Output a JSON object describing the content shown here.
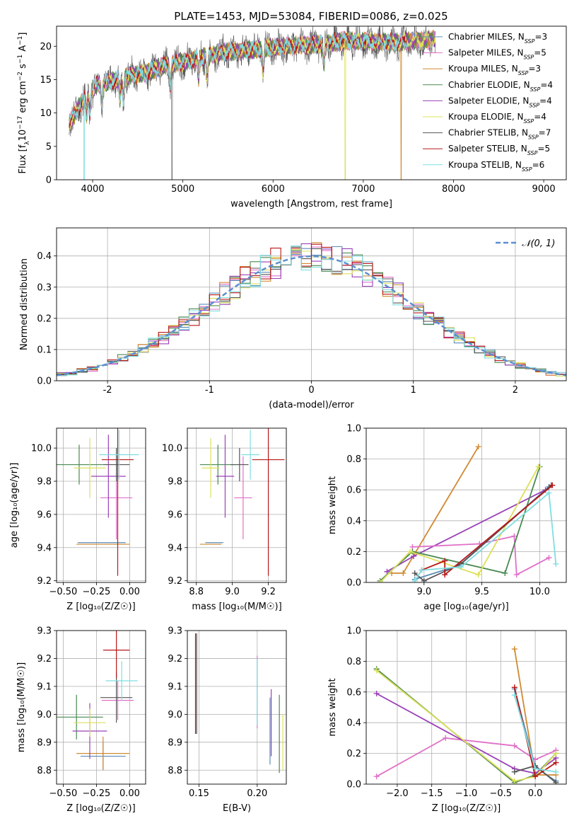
{
  "figure": {
    "title": "PLATE=1453, MJD=53084, FIBERID=0086, z=0.025"
  },
  "colors": {
    "Chabrier MILES": "#5b8db8",
    "Salpeter MILES": "#e070c8",
    "Kroupa MILES": "#d08a30",
    "Chabrier ELODIE": "#4a8a50",
    "Salpeter ELODIE": "#9a40b8",
    "Kroupa ELODIE": "#dde05a",
    "Chabrier STELIB": "#555555",
    "Salpeter STELIB": "#b81818",
    "Kroupa STELIB": "#80dde0"
  },
  "chart_data": [
    {
      "id": "spectrum",
      "type": "line",
      "title": "PLATE=1453, MJD=53084, FIBERID=0086, z=0.025",
      "xlabel": "wavelength [Angstrom, rest frame]",
      "ylabel_parts": [
        "Flux [f",
        "λ",
        "10",
        "−17",
        " erg cm",
        "−2",
        " s",
        "−1",
        " A",
        "−1",
        "]"
      ],
      "xlim": [
        3600,
        9250
      ],
      "ylim": [
        0,
        23
      ],
      "xticks": [
        4000,
        5000,
        6000,
        7000,
        8000,
        9000
      ],
      "yticks": [
        0,
        5,
        10,
        15,
        20
      ],
      "legend_position": "upper-right",
      "grid": false,
      "series": [
        {
          "name": "Chabrier MILES",
          "nssp": "3"
        },
        {
          "name": "Salpeter MILES",
          "nssp": "5"
        },
        {
          "name": "Kroupa MILES",
          "nssp": "3"
        },
        {
          "name": "Chabrier ELODIE",
          "nssp": "4"
        },
        {
          "name": "Salpeter ELODIE",
          "nssp": "4"
        },
        {
          "name": "Kroupa ELODIE",
          "nssp": "4"
        },
        {
          "name": "Chabrier STELIB",
          "nssp": "7"
        },
        {
          "name": "Salpeter STELIB",
          "nssp": "5"
        },
        {
          "name": "Kroupa STELIB",
          "nssp": "6"
        }
      ],
      "continuum": {
        "x": [
          3750,
          3850,
          3950,
          4050,
          4200,
          4400,
          4600,
          4800,
          5000,
          5200,
          5400,
          5600,
          5800,
          6000,
          6200,
          6400,
          6600,
          6800,
          7000,
          7200,
          7400,
          7600,
          7800
        ],
        "y": [
          8.5,
          11,
          13,
          14.2,
          14.8,
          15.6,
          16,
          17.2,
          17.6,
          18.3,
          19,
          19.2,
          19.5,
          19.8,
          20.1,
          20.2,
          20.4,
          20.8,
          20.7,
          20.6,
          20.6,
          20.9,
          21
        ]
      },
      "absorption_lines": [
        3934,
        3969,
        4102,
        4304,
        4340,
        4861,
        5175,
        5270,
        5890,
        6563,
        8500,
        8542,
        8662
      ],
      "dropouts": [
        {
          "x": 3905,
          "series": "Kroupa STELIB"
        },
        {
          "x": 4880,
          "series": "Chabrier STELIB"
        },
        {
          "x": 6800,
          "series": "Kroupa ELODIE"
        },
        {
          "x": 7420,
          "series": "Kroupa MILES"
        }
      ]
    },
    {
      "id": "residuals",
      "type": "step",
      "xlabel": "(data-model)/error",
      "ylabel": "Normed distribution",
      "xlim": [
        -2.5,
        2.5
      ],
      "ylim": [
        0,
        0.49
      ],
      "xticks": [
        -2,
        -1,
        0,
        1,
        2
      ],
      "yticks": [
        0.0,
        0.1,
        0.2,
        0.3,
        0.4
      ],
      "legend_position": "upper-right",
      "legend_label": "𝒩(0, 1)",
      "grid": true,
      "bin_width": 0.1,
      "gaussian": {
        "mean": 0,
        "sigma": 1
      }
    },
    {
      "id": "age-vs-Z",
      "type": "errorbar",
      "xlabel": "Z [log₁₀(Z/Z☉)]",
      "ylabel": "age  [log₁₀(age/yr)]",
      "xlim": [
        -0.55,
        0.12
      ],
      "ylim": [
        9.19,
        10.12
      ],
      "xticks": [
        -0.5,
        -0.25,
        0.0
      ],
      "xticklabels": [
        "−0.50",
        "−0.25",
        "0.00"
      ],
      "yticks": [
        9.2,
        9.4,
        9.6,
        9.8,
        10.0
      ],
      "yticklabels": [
        "9.2",
        "9.4",
        "9.6",
        "9.8",
        "10.0"
      ],
      "grid": true,
      "points": [
        {
          "series": "Chabrier MILES",
          "x": -0.21,
          "xerr": 0.18,
          "y": 9.43,
          "yerr": 0.0
        },
        {
          "series": "Salpeter MILES",
          "x": -0.1,
          "xerr": 0.12,
          "y": 9.7,
          "yerr": 0.25
        },
        {
          "series": "Kroupa MILES",
          "x": -0.2,
          "xerr": 0.2,
          "y": 9.42,
          "yerr": 0.0
        },
        {
          "series": "Chabrier ELODIE",
          "x": -0.38,
          "xerr": 0.18,
          "y": 9.9,
          "yerr": 0.12
        },
        {
          "series": "Salpeter ELODIE",
          "x": -0.16,
          "xerr": 0.13,
          "y": 9.83,
          "yerr": 0.25
        },
        {
          "series": "Kroupa ELODIE",
          "x": -0.3,
          "xerr": 0.12,
          "y": 9.88,
          "yerr": 0.18
        },
        {
          "series": "Chabrier STELIB",
          "x": -0.1,
          "xerr": 0.1,
          "y": 9.9,
          "yerr": 0.1
        },
        {
          "series": "Salpeter STELIB",
          "x": -0.09,
          "xerr": 0.12,
          "y": 9.93,
          "yerr": 0.7
        },
        {
          "series": "Kroupa STELIB",
          "x": -0.08,
          "xerr": 0.15,
          "y": 9.96,
          "yerr": 0.15
        }
      ]
    },
    {
      "id": "age-vs-mass",
      "type": "errorbar",
      "xlabel": "mass [log₁₀(M/M☉)]",
      "xlim": [
        8.75,
        9.3
      ],
      "ylim": [
        9.19,
        10.12
      ],
      "xticks": [
        8.8,
        9.0,
        9.2
      ],
      "xticklabels": [
        "8.8",
        "9.0",
        "9.2"
      ],
      "yticks": [
        9.2,
        9.4,
        9.6,
        9.8,
        10.0
      ],
      "yticklabels": [
        "9.2",
        "9.4",
        "9.6",
        "9.8",
        "10.0"
      ],
      "grid": true,
      "points": [
        {
          "series": "Chabrier MILES",
          "x": 8.9,
          "xerr": 0.05,
          "y": 9.43,
          "yerr": 0.0
        },
        {
          "series": "Salpeter MILES",
          "x": 9.06,
          "xerr": 0.05,
          "y": 9.7,
          "yerr": 0.25
        },
        {
          "series": "Kroupa MILES",
          "x": 8.88,
          "xerr": 0.06,
          "y": 9.42,
          "yerr": 0.0
        },
        {
          "series": "Chabrier ELODIE",
          "x": 8.92,
          "xerr": 0.1,
          "y": 9.9,
          "yerr": 0.12
        },
        {
          "series": "Salpeter ELODIE",
          "x": 8.96,
          "xerr": 0.05,
          "y": 9.83,
          "yerr": 0.25
        },
        {
          "series": "Kroupa ELODIE",
          "x": 8.88,
          "xerr": 0.05,
          "y": 9.88,
          "yerr": 0.18
        },
        {
          "series": "Chabrier STELIB",
          "x": 9.04,
          "xerr": 0.05,
          "y": 9.9,
          "yerr": 0.1
        },
        {
          "series": "Salpeter STELIB",
          "x": 9.2,
          "xerr": 0.09,
          "y": 9.93,
          "yerr": 0.7
        },
        {
          "series": "Kroupa STELIB",
          "x": 9.1,
          "xerr": 0.05,
          "y": 9.96,
          "yerr": 0.15
        }
      ]
    },
    {
      "id": "weight-vs-age",
      "type": "line",
      "xlabel": "age  [log₁₀(age/yr)]",
      "ylabel": "mass weight",
      "xlim": [
        8.5,
        10.23
      ],
      "ylim": [
        0,
        1.0
      ],
      "xticks": [
        9.0,
        9.5,
        10.0
      ],
      "xticklabels": [
        "9.0",
        "9.5",
        "10.0"
      ],
      "yticks": [
        0.0,
        0.2,
        0.4,
        0.6,
        0.8,
        1.0
      ],
      "yticklabels": [
        "0.0",
        "0.2",
        "0.4",
        "0.6",
        "0.8",
        "1.0"
      ],
      "grid": true,
      "series": [
        {
          "name": "Kroupa MILES",
          "x": [
            8.72,
            8.82,
            9.47
          ],
          "y": [
            0.06,
            0.06,
            0.88
          ]
        },
        {
          "name": "Chabrier MILES",
          "x": [
            8.92,
            9.3,
            10.08
          ],
          "y": [
            0.02,
            0.11,
            0.62
          ]
        },
        {
          "name": "Salpeter ELODIE",
          "x": [
            8.68,
            8.91,
            10.05
          ],
          "y": [
            0.07,
            0.17,
            0.6
          ]
        },
        {
          "name": "Salpeter MILES",
          "x": [
            8.9,
            9.48,
            9.78,
            9.8,
            10.08
          ],
          "y": [
            0.23,
            0.25,
            0.3,
            0.05,
            0.16
          ]
        },
        {
          "name": "Chabrier ELODIE",
          "x": [
            8.62,
            8.9,
            9.7,
            10.0
          ],
          "y": [
            0.01,
            0.2,
            0.06,
            0.75
          ]
        },
        {
          "name": "Kroupa ELODIE",
          "x": [
            8.62,
            8.88,
            9.47,
            9.99
          ],
          "y": [
            0.0,
            0.2,
            0.05,
            0.75
          ]
        },
        {
          "name": "Chabrier STELIB",
          "x": [
            8.92,
            9.0,
            9.32,
            10.1
          ],
          "y": [
            0.06,
            0.01,
            0.12,
            0.63
          ]
        },
        {
          "name": "Salpeter STELIB",
          "x": [
            8.98,
            9.18,
            9.18,
            10.11
          ],
          "y": [
            0.08,
            0.14,
            0.05,
            0.63
          ]
        },
        {
          "name": "Kroupa STELIB",
          "x": [
            8.92,
            8.98,
            9.32,
            10.08,
            10.14
          ],
          "y": [
            0.01,
            0.08,
            0.1,
            0.58,
            0.12
          ]
        }
      ]
    },
    {
      "id": "mass-vs-Z",
      "type": "errorbar",
      "xlabel": "Z [log₁₀(Z/Z☉)]",
      "ylabel": "mass [log₁₀(M/M☉)]",
      "xlim": [
        -0.55,
        0.12
      ],
      "ylim": [
        8.75,
        9.3
      ],
      "xticks": [
        -0.5,
        -0.25,
        0.0
      ],
      "xticklabels": [
        "−0.50",
        "−0.25",
        "0.00"
      ],
      "yticks": [
        8.8,
        8.9,
        9.0,
        9.1,
        9.2,
        9.3
      ],
      "yticklabels": [
        "8.8",
        "8.9",
        "9.0",
        "9.1",
        "9.2",
        "9.3"
      ],
      "grid": true,
      "points": [
        {
          "series": "Chabrier MILES",
          "x": -0.2,
          "xerr": 0.17,
          "y": 8.85,
          "yerr": 0.05
        },
        {
          "series": "Salpeter MILES",
          "x": -0.09,
          "xerr": 0.12,
          "y": 9.05,
          "yerr": 0.07
        },
        {
          "series": "Kroupa MILES",
          "x": -0.2,
          "xerr": 0.2,
          "y": 8.86,
          "yerr": 0.06
        },
        {
          "series": "Chabrier ELODIE",
          "x": -0.4,
          "xerr": 0.2,
          "y": 8.99,
          "yerr": 0.08
        },
        {
          "series": "Salpeter ELODIE",
          "x": -0.3,
          "xerr": 0.13,
          "y": 8.94,
          "yerr": 0.1
        },
        {
          "series": "Kroupa ELODIE",
          "x": -0.3,
          "xerr": 0.12,
          "y": 8.97,
          "yerr": 0.05
        },
        {
          "series": "Chabrier STELIB",
          "x": -0.1,
          "xerr": 0.12,
          "y": 9.06,
          "yerr": 0.09
        },
        {
          "series": "Salpeter STELIB",
          "x": -0.1,
          "xerr": 0.1,
          "y": 9.23,
          "yerr": 0.1
        },
        {
          "series": "Kroupa STELIB",
          "x": -0.06,
          "xerr": 0.12,
          "y": 9.12,
          "yerr": 0.07
        }
      ]
    },
    {
      "id": "mass-vs-ebv",
      "type": "errorbar",
      "xlabel": "E(B-V)",
      "xlim": [
        0.14,
        0.225
      ],
      "ylim": [
        8.75,
        9.3
      ],
      "xticks": [
        0.15,
        0.2
      ],
      "xticklabels": [
        "0.15",
        "0.20"
      ],
      "yticks": [
        8.8,
        8.9,
        9.0,
        9.1,
        9.2,
        9.3
      ],
      "yticklabels": [
        "8.8",
        "8.9",
        "9.0",
        "9.1",
        "9.2",
        "9.3"
      ],
      "grid": true,
      "points": [
        {
          "series": "Salpeter STELIB",
          "x": 0.147,
          "xerr": 0,
          "y": 9.11,
          "yerr": 0.18
        },
        {
          "series": "Chabrier STELIB",
          "x": 0.148,
          "xerr": 0,
          "y": 9.11,
          "yerr": 0.18
        },
        {
          "series": "Salpeter MILES",
          "x": 0.2,
          "xerr": 0,
          "y": 9.08,
          "yerr": 0.13
        },
        {
          "series": "Kroupa STELIB",
          "x": 0.2,
          "xerr": 0,
          "y": 9.08,
          "yerr": 0.12
        },
        {
          "series": "Salpeter ELODIE",
          "x": 0.212,
          "xerr": 0,
          "y": 8.97,
          "yerr": 0.12
        },
        {
          "series": "Chabrier MILES",
          "x": 0.211,
          "xerr": 0,
          "y": 8.94,
          "yerr": 0.12
        },
        {
          "series": "Chabrier ELODIE",
          "x": 0.219,
          "xerr": 0,
          "y": 8.93,
          "yerr": 0.14
        },
        {
          "series": "Kroupa ELODIE",
          "x": 0.222,
          "xerr": 0,
          "y": 8.9,
          "yerr": 0.1
        }
      ]
    },
    {
      "id": "weight-vs-Z",
      "type": "line",
      "xlabel": "Z [log₁₀(Z/Z☉)]",
      "ylabel": "mass weight",
      "xlim": [
        -2.45,
        0.45
      ],
      "ylim": [
        0,
        1.0
      ],
      "xticks": [
        -2.0,
        -1.5,
        -1.0,
        -0.5,
        0.0
      ],
      "xticklabels": [
        "−2.0",
        "−1.5",
        "−1.0",
        "−0.5",
        "0.0"
      ],
      "yticks": [
        0.0,
        0.2,
        0.4,
        0.6,
        0.8,
        1.0
      ],
      "yticklabels": [
        "0.0",
        "0.2",
        "0.4",
        "0.6",
        "0.8",
        "1.0"
      ],
      "grid": true,
      "series": [
        {
          "name": "Kroupa MILES",
          "x": [
            -0.3,
            0.0,
            0.3
          ],
          "y": [
            0.88,
            0.06,
            0.06
          ]
        },
        {
          "name": "Salpeter MILES",
          "x": [
            -2.3,
            -1.3,
            -0.3,
            0.0,
            0.3
          ],
          "y": [
            0.05,
            0.3,
            0.25,
            0.16,
            0.22
          ]
        },
        {
          "name": "Chabrier MILES",
          "x": [
            -0.3,
            0.0,
            0.3
          ],
          "y": [
            0.62,
            0.11,
            0.02
          ]
        },
        {
          "name": "Chabrier ELODIE",
          "x": [
            -2.3,
            -0.3,
            0.0,
            0.3
          ],
          "y": [
            0.75,
            0.01,
            0.06,
            0.2
          ]
        },
        {
          "name": "Salpeter ELODIE",
          "x": [
            -2.3,
            -0.3,
            0.0,
            0.3
          ],
          "y": [
            0.59,
            0.1,
            0.07,
            0.17
          ]
        },
        {
          "name": "Kroupa ELODIE",
          "x": [
            -2.3,
            -0.3,
            0.0,
            0.3
          ],
          "y": [
            0.74,
            0.02,
            0.05,
            0.2
          ]
        },
        {
          "name": "Chabrier STELIB",
          "x": [
            -0.3,
            0.0,
            0.3
          ],
          "y": [
            0.08,
            0.12,
            0.01
          ]
        },
        {
          "name": "Salpeter STELIB",
          "x": [
            -0.3,
            0.0,
            0.3
          ],
          "y": [
            0.63,
            0.05,
            0.14
          ]
        },
        {
          "name": "Kroupa STELIB",
          "x": [
            -0.3,
            0.0,
            0.3
          ],
          "y": [
            0.58,
            0.1,
            0.08
          ]
        }
      ]
    }
  ]
}
